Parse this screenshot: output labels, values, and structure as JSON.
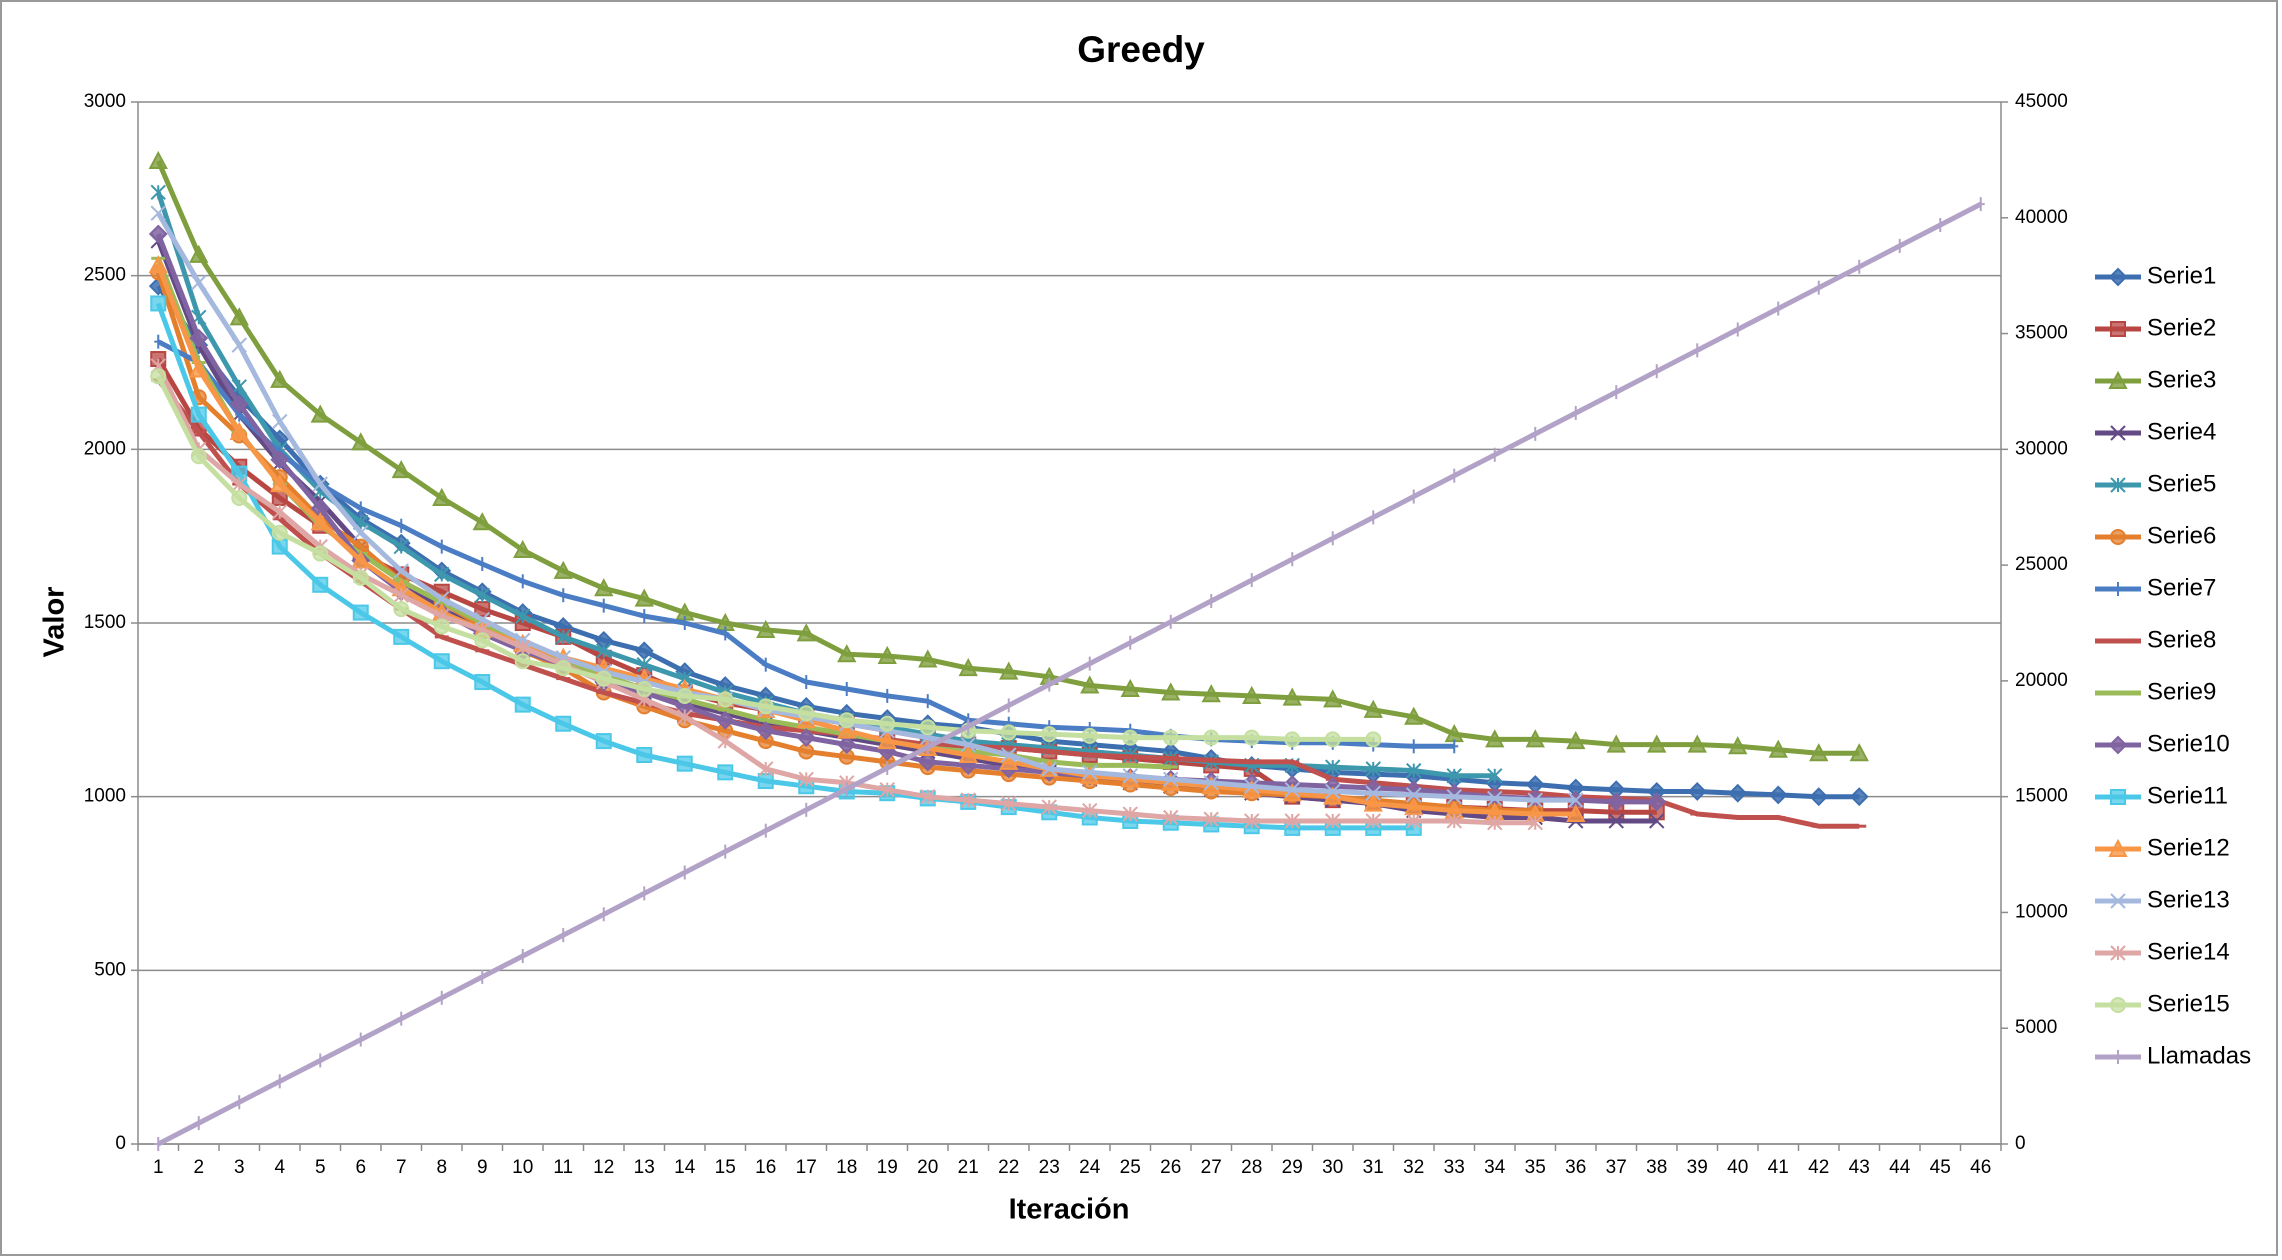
{
  "chart_data": {
    "type": "line",
    "title": "Greedy",
    "x_label": "Iteración",
    "y_label": "Valor",
    "categories": [
      1,
      2,
      3,
      4,
      5,
      6,
      7,
      8,
      9,
      10,
      11,
      12,
      13,
      14,
      15,
      16,
      17,
      18,
      19,
      20,
      21,
      22,
      23,
      24,
      25,
      26,
      27,
      28,
      29,
      30,
      31,
      32,
      33,
      34,
      35,
      36,
      37,
      38,
      39,
      40,
      41,
      42,
      43,
      44,
      45,
      46
    ],
    "ylim": [
      0,
      3000
    ],
    "yticks": [
      0,
      500,
      1000,
      1500,
      2000,
      2500,
      3000
    ],
    "y2lim": [
      0,
      45000
    ],
    "y2ticks": [
      0,
      5000,
      10000,
      15000,
      20000,
      25000,
      30000,
      35000,
      40000,
      45000
    ],
    "grid": true,
    "legend": "right",
    "series": [
      {
        "name": "Serie1",
        "color": "#3d6fb0",
        "marker": "diamond",
        "values": [
          2470,
          2300,
          2150,
          2030,
          1900,
          1800,
          1730,
          1650,
          1590,
          1530,
          1490,
          1450,
          1420,
          1360,
          1320,
          1290,
          1260,
          1240,
          1225,
          1210,
          1200,
          1180,
          1160,
          1150,
          1140,
          1130,
          1110,
          1090,
          1080,
          1070,
          1065,
          1060,
          1050,
          1040,
          1035,
          1025,
          1020,
          1015,
          1015,
          1010,
          1005,
          1000,
          1000,
          null,
          null,
          null
        ]
      },
      {
        "name": "Serie2",
        "color": "#b84743",
        "marker": "square",
        "values": [
          2260,
          2060,
          1950,
          1860,
          1780,
          1700,
          1640,
          1590,
          1540,
          1500,
          1460,
          1400,
          1350,
          1300,
          1270,
          1250,
          1230,
          1210,
          1190,
          1170,
          1150,
          1140,
          1130,
          1120,
          1110,
          1100,
          1090,
          1080,
          1000,
          990,
          985,
          975,
          970,
          965,
          960,
          960,
          955,
          955,
          null,
          null,
          null,
          null,
          null,
          null,
          null,
          null
        ]
      },
      {
        "name": "Serie3",
        "color": "#7f9f3f",
        "marker": "triangle",
        "values": [
          2830,
          2560,
          2380,
          2200,
          2100,
          2020,
          1940,
          1860,
          1790,
          1710,
          1650,
          1600,
          1570,
          1530,
          1500,
          1480,
          1470,
          1410,
          1405,
          1395,
          1370,
          1360,
          1345,
          1320,
          1310,
          1300,
          1295,
          1290,
          1285,
          1280,
          1250,
          1230,
          1180,
          1165,
          1165,
          1160,
          1150,
          1150,
          1150,
          1145,
          1135,
          1125,
          1125,
          null,
          null,
          null
        ]
      },
      {
        "name": "Serie4",
        "color": "#634a85",
        "marker": "x",
        "values": [
          2600,
          2300,
          2100,
          1960,
          1850,
          1720,
          1620,
          1540,
          1480,
          1420,
          1380,
          1340,
          1300,
          1270,
          1240,
          1210,
          1190,
          1170,
          1150,
          1130,
          1110,
          1090,
          1070,
          1050,
          1040,
          1030,
          1020,
          1010,
          1000,
          990,
          980,
          960,
          950,
          940,
          940,
          930,
          930,
          930,
          null,
          null,
          null,
          null,
          null,
          null,
          null,
          null
        ]
      },
      {
        "name": "Serie5",
        "color": "#3e98ad",
        "marker": "star",
        "values": [
          2740,
          2380,
          2180,
          2000,
          1880,
          1790,
          1720,
          1640,
          1580,
          1520,
          1460,
          1420,
          1380,
          1340,
          1300,
          1270,
          1240,
          1220,
          1200,
          1180,
          1160,
          1150,
          1140,
          1130,
          1120,
          1110,
          1100,
          1090,
          1090,
          1085,
          1080,
          1075,
          1060,
          1060,
          null,
          null,
          null,
          null,
          null,
          null,
          null,
          null,
          null,
          null,
          null,
          null
        ]
      },
      {
        "name": "Serie6",
        "color": "#e47f2e",
        "marker": "circle",
        "values": [
          2510,
          2150,
          2040,
          1920,
          1800,
          1720,
          1620,
          1560,
          1490,
          1420,
          1370,
          1300,
          1260,
          1220,
          1190,
          1160,
          1130,
          1115,
          1100,
          1085,
          1075,
          1065,
          1055,
          1045,
          1035,
          1025,
          1015,
          1010,
          1005,
          1000,
          990,
          980,
          970,
          960,
          960,
          null,
          null,
          null,
          null,
          null,
          null,
          null,
          null,
          null,
          null,
          null
        ]
      },
      {
        "name": "Serie7",
        "color": "#4a7dc4",
        "marker": "plus",
        "values": [
          2310,
          2250,
          2100,
          1990,
          1900,
          1830,
          1780,
          1720,
          1670,
          1620,
          1580,
          1550,
          1520,
          1500,
          1470,
          1380,
          1330,
          1310,
          1290,
          1275,
          1220,
          1210,
          1200,
          1195,
          1190,
          1175,
          1165,
          1160,
          1155,
          1155,
          1150,
          1145,
          1145,
          null,
          null,
          null,
          null,
          null,
          null,
          null,
          null,
          null,
          null,
          null,
          null,
          null
        ]
      },
      {
        "name": "Serie8",
        "color": "#c0504d",
        "marker": "dash",
        "values": [
          2200,
          2050,
          1900,
          1800,
          1700,
          1620,
          1540,
          1460,
          1420,
          1380,
          1340,
          1300,
          1270,
          1240,
          1220,
          1200,
          1190,
          1180,
          1165,
          1150,
          1145,
          1140,
          1130,
          1120,
          1115,
          1110,
          1105,
          1100,
          1100,
          1050,
          1040,
          1030,
          1020,
          1015,
          1010,
          1000,
          995,
          990,
          950,
          940,
          940,
          915,
          915,
          null,
          null,
          null
        ]
      },
      {
        "name": "Serie9",
        "color": "#9bbb59",
        "marker": "dash",
        "values": [
          2550,
          2250,
          2050,
          1900,
          1780,
          1700,
          1620,
          1560,
          1500,
          1440,
          1390,
          1350,
          1310,
          1280,
          1250,
          1220,
          1200,
          1180,
          1160,
          1140,
          1130,
          1120,
          1100,
          1090,
          1090,
          1085,
          null,
          null,
          null,
          null,
          null,
          null,
          null,
          null,
          null,
          null,
          null,
          null,
          null,
          null,
          null,
          null,
          null,
          null,
          null,
          null
        ]
      },
      {
        "name": "Serie10",
        "color": "#8064a2",
        "marker": "diamond",
        "values": [
          2620,
          2320,
          2130,
          1970,
          1830,
          1680,
          1590,
          1530,
          1470,
          1420,
          1380,
          1330,
          1300,
          1260,
          1220,
          1190,
          1170,
          1150,
          1130,
          1100,
          1090,
          1080,
          1070,
          1060,
          1055,
          1050,
          1045,
          1040,
          1035,
          1030,
          1025,
          1020,
          1010,
          1000,
          995,
          990,
          985,
          985,
          null,
          null,
          null,
          null,
          null,
          null,
          null,
          null
        ]
      },
      {
        "name": "Serie11",
        "color": "#4bc8e8",
        "marker": "square",
        "values": [
          2420,
          2100,
          1930,
          1720,
          1610,
          1530,
          1460,
          1390,
          1330,
          1265,
          1210,
          1160,
          1120,
          1095,
          1070,
          1045,
          1030,
          1015,
          1010,
          995,
          985,
          970,
          955,
          940,
          930,
          925,
          920,
          915,
          910,
          910,
          910,
          910,
          null,
          null,
          null,
          null,
          null,
          null,
          null,
          null,
          null,
          null,
          null,
          null,
          null,
          null
        ]
      },
      {
        "name": "Serie12",
        "color": "#f79646",
        "marker": "triangle",
        "values": [
          2530,
          2230,
          2050,
          1900,
          1790,
          1680,
          1600,
          1530,
          1480,
          1440,
          1400,
          1370,
          1340,
          1310,
          1280,
          1250,
          1220,
          1190,
          1160,
          1140,
          1120,
          1100,
          1080,
          1060,
          1050,
          1040,
          1030,
          1020,
          1010,
          1000,
          980,
          970,
          960,
          955,
          950,
          950,
          null,
          null,
          null,
          null,
          null,
          null,
          null,
          null,
          null,
          null
        ]
      },
      {
        "name": "Serie13",
        "color": "#a5b8de",
        "marker": "x",
        "values": [
          2680,
          2480,
          2300,
          2080,
          1900,
          1760,
          1650,
          1570,
          1510,
          1450,
          1400,
          1360,
          1330,
          1300,
          1280,
          1250,
          1230,
          1210,
          1190,
          1170,
          1150,
          1120,
          1080,
          1070,
          1060,
          1050,
          1040,
          1030,
          1020,
          1015,
          1010,
          1005,
          1000,
          995,
          990,
          990,
          null,
          null,
          null,
          null,
          null,
          null,
          null,
          null,
          null,
          null
        ]
      },
      {
        "name": "Serie14",
        "color": "#dea6a4",
        "marker": "star",
        "values": [
          2240,
          2000,
          1900,
          1820,
          1720,
          1640,
          1580,
          1520,
          1480,
          1430,
          1380,
          1330,
          1280,
          1230,
          1160,
          1080,
          1050,
          1040,
          1020,
          1000,
          990,
          980,
          970,
          960,
          950,
          940,
          935,
          930,
          930,
          930,
          930,
          930,
          930,
          925,
          925,
          null,
          null,
          null,
          null,
          null,
          null,
          null,
          null,
          null,
          null,
          null
        ]
      },
      {
        "name": "Serie15",
        "color": "#c4dfa0",
        "marker": "circle",
        "values": [
          2210,
          1980,
          1860,
          1760,
          1700,
          1630,
          1540,
          1490,
          1450,
          1390,
          1370,
          1340,
          1310,
          1290,
          1280,
          1260,
          1240,
          1220,
          1210,
          1200,
          1190,
          1185,
          1180,
          1175,
          1170,
          1170,
          1170,
          1170,
          1165,
          1165,
          1165,
          null,
          null,
          null,
          null,
          null,
          null,
          null,
          null,
          null,
          null,
          null,
          null,
          null,
          null,
          null
        ]
      },
      {
        "name": "Llamadas",
        "color": "#b3a2c7",
        "marker": "plus",
        "axis": "y2",
        "values": [
          0,
          902,
          1804,
          2706,
          3608,
          4510,
          5412,
          6314,
          7216,
          8118,
          9020,
          9922,
          10824,
          11726,
          12628,
          13530,
          14432,
          15334,
          16236,
          17138,
          18040,
          18942,
          19844,
          20746,
          21648,
          22550,
          23452,
          24354,
          25256,
          26158,
          27060,
          27962,
          28864,
          29766,
          30668,
          31570,
          32472,
          33374,
          34276,
          35178,
          36080,
          36982,
          37884,
          38786,
          39688,
          40590
        ]
      }
    ]
  }
}
